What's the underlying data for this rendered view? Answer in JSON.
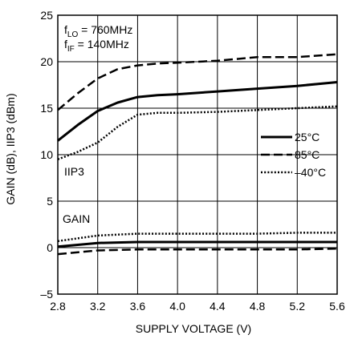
{
  "chart_data": {
    "type": "line",
    "title": "",
    "xlabel": "SUPPLY VOLTAGE (V)",
    "ylabel": "GAIN (dB), IIP3 (dBm)",
    "xlim": [
      2.8,
      5.6
    ],
    "ylim": [
      -5,
      25
    ],
    "x_ticks": [
      2.8,
      3.2,
      3.6,
      4.0,
      4.4,
      4.8,
      5.2,
      5.6
    ],
    "x_tick_labels": [
      "2.8",
      "3.2",
      "3.6",
      "4.0",
      "4.4",
      "4.8",
      "5.2",
      "5.6"
    ],
    "y_ticks": [
      -5,
      0,
      5,
      10,
      15,
      20,
      25
    ],
    "y_tick_labels": [
      "–5",
      "0",
      "5",
      "10",
      "15",
      "20",
      "25"
    ],
    "grid": true,
    "legend": {
      "placement": "right",
      "entries": [
        {
          "name": "25°C",
          "style": "solid"
        },
        {
          "name": "85°C",
          "style": "dashed"
        },
        {
          "name": "–40°C",
          "style": "dotted"
        }
      ]
    },
    "annotations": {
      "flo_prefix": "f",
      "flo_sub": "LO",
      "flo_value": " = 760MHz",
      "fif_prefix": "f",
      "fif_sub": "IF",
      "fif_value": " = 140MHz",
      "iip3_label": "IIP3",
      "gain_label": "GAIN"
    },
    "series": [
      {
        "name": "25°C",
        "group": "IIP3",
        "style": "solid",
        "x": [
          2.8,
          3.0,
          3.2,
          3.4,
          3.6,
          3.8,
          4.0,
          4.4,
          4.8,
          5.2,
          5.6
        ],
        "y": [
          11.5,
          13.2,
          14.7,
          15.6,
          16.2,
          16.4,
          16.5,
          16.8,
          17.1,
          17.4,
          17.8
        ]
      },
      {
        "name": "85°C",
        "group": "IIP3",
        "style": "dashed",
        "x": [
          2.8,
          3.0,
          3.2,
          3.4,
          3.6,
          3.8,
          4.0,
          4.4,
          4.8,
          5.2,
          5.6
        ],
        "y": [
          14.8,
          16.6,
          18.2,
          19.2,
          19.6,
          19.8,
          19.9,
          20.1,
          20.5,
          20.5,
          20.8
        ]
      },
      {
        "name": "–40°C",
        "group": "IIP3",
        "style": "dotted",
        "x": [
          2.8,
          3.0,
          3.2,
          3.4,
          3.6,
          3.8,
          4.0,
          4.4,
          4.8,
          5.2,
          5.6
        ],
        "y": [
          9.5,
          10.3,
          11.3,
          13.0,
          14.3,
          14.5,
          14.5,
          14.6,
          14.8,
          15.0,
          15.2
        ]
      },
      {
        "name": "25°C",
        "group": "GAIN",
        "style": "solid",
        "x": [
          2.8,
          3.2,
          3.6,
          4.0,
          4.4,
          4.8,
          5.2,
          5.6
        ],
        "y": [
          0.1,
          0.5,
          0.6,
          0.6,
          0.6,
          0.6,
          0.6,
          0.6
        ]
      },
      {
        "name": "85°C",
        "group": "GAIN",
        "style": "dashed",
        "x": [
          2.8,
          3.2,
          3.6,
          4.0,
          4.4,
          4.8,
          5.2,
          5.6
        ],
        "y": [
          -0.7,
          -0.3,
          -0.2,
          -0.2,
          -0.2,
          -0.2,
          -0.2,
          -0.1
        ]
      },
      {
        "name": "–40°C",
        "group": "GAIN",
        "style": "dotted",
        "x": [
          2.8,
          3.2,
          3.6,
          4.0,
          4.4,
          4.8,
          5.2,
          5.6
        ],
        "y": [
          0.7,
          1.3,
          1.5,
          1.5,
          1.5,
          1.5,
          1.6,
          1.6
        ]
      }
    ]
  }
}
